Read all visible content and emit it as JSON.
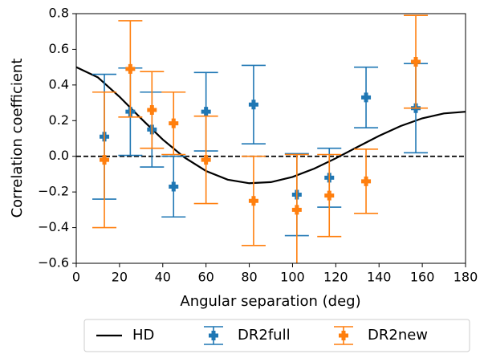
{
  "chart_data": {
    "type": "errorbar",
    "xlabel": "Angular separation (deg)",
    "ylabel": "Correlation coefficient",
    "xlim": [
      0,
      180
    ],
    "ylim": [
      -0.6,
      0.8
    ],
    "xticks": [
      0,
      20,
      40,
      60,
      80,
      100,
      120,
      140,
      160,
      180
    ],
    "yticks": [
      {
        "value": -0.6,
        "label": "−0.6"
      },
      {
        "value": -0.4,
        "label": "−0.4"
      },
      {
        "value": -0.2,
        "label": "−0.2"
      },
      {
        "value": 0,
        "label": "0.0"
      },
      {
        "value": 0.2,
        "label": "0.2"
      },
      {
        "value": 0.4,
        "label": "0.4"
      },
      {
        "value": 0.6,
        "label": "0.6"
      },
      {
        "value": 0.8,
        "label": "0.8"
      }
    ],
    "hline": 0,
    "legend": "lower center outside",
    "curve": {
      "name": "HD",
      "color": "#000000",
      "x": [
        0,
        10,
        20,
        30,
        40,
        50,
        60,
        70,
        80,
        90,
        100,
        110,
        120,
        130,
        140,
        150,
        160,
        170,
        180
      ],
      "values": [
        0.5,
        0.4425,
        0.3341,
        0.2116,
        0.0942,
        -0.0062,
        -0.0824,
        -0.1309,
        -0.1511,
        -0.1449,
        -0.1159,
        -0.0693,
        -0.0111,
        0.0522,
        0.1145,
        0.1697,
        0.213,
        0.2405,
        0.25
      ]
    },
    "series": [
      {
        "name": "DR2full",
        "color": "#1f77b4",
        "x": [
          13,
          25,
          35,
          45,
          60,
          82,
          102,
          117,
          134,
          157
        ],
        "values": [
          0.11,
          0.25,
          0.15,
          -0.17,
          0.25,
          0.29,
          -0.215,
          -0.12,
          0.33,
          0.27
        ],
        "errors": [
          0.35,
          0.245,
          0.21,
          0.17,
          0.22,
          0.22,
          0.23,
          0.165,
          0.17,
          0.25
        ]
      },
      {
        "name": "DR2new",
        "color": "#ff7f0e",
        "x": [
          13,
          25,
          35,
          45,
          60,
          82,
          102,
          117,
          134,
          157
        ],
        "values": [
          -0.02,
          0.49,
          0.26,
          0.185,
          -0.02,
          -0.25,
          -0.3,
          -0.22,
          -0.14,
          0.53
        ],
        "errors": [
          0.38,
          0.27,
          0.215,
          0.175,
          0.245,
          0.25,
          0.31,
          0.23,
          0.18,
          0.26
        ]
      }
    ]
  }
}
